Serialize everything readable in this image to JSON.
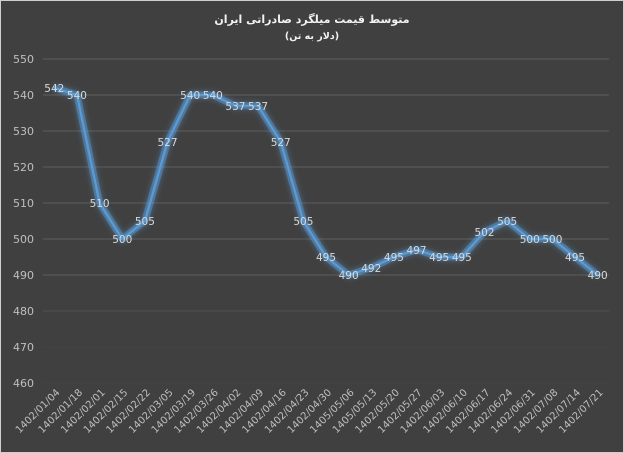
{
  "chart": {
    "title": "متوسط قیمت میلگرد صادراتی ایران",
    "subtitle": "(دلار به تن)"
  },
  "colors": {
    "background": "#404040",
    "line": "#5b9bd5",
    "grid": "#5a5a5a",
    "text": "#bfbfbf"
  },
  "chart_data": {
    "type": "line",
    "title": "متوسط قیمت میلگرد صادراتی ایران",
    "subtitle": "(دلار به تن)",
    "xlabel": "",
    "ylabel": "",
    "ylim": [
      460,
      550
    ],
    "yticks": [
      460,
      470,
      480,
      490,
      500,
      510,
      520,
      530,
      540,
      550
    ],
    "grid": true,
    "legend": "none",
    "data_labels": true,
    "categories": [
      "1402/01/04",
      "1402/01/18",
      "1402/02/01",
      "1402/02/15",
      "1402/02/22",
      "1402/03/05",
      "1402/03/19",
      "1402/03/26",
      "1402/04/02",
      "1402/04/09",
      "1402/04/16",
      "1402/04/23",
      "1402/04/30",
      "1405/05/06",
      "1405/05/13",
      "1402/05/20",
      "1402/05/27",
      "1402/06/03",
      "1402/06/10",
      "1402/06/17",
      "1402/06/24",
      "1402/06/31",
      "1402/07/08",
      "1402/07/14",
      "1402/07/21"
    ],
    "series": [
      {
        "name": "متوسط قیمت میلگرد صادراتی ایران",
        "values": [
          542,
          540,
          510,
          500,
          505,
          527,
          540,
          540,
          537,
          537,
          527,
          505,
          495,
          490,
          492,
          495,
          497,
          495,
          495,
          502,
          505,
          500,
          500,
          495,
          490
        ]
      }
    ]
  }
}
